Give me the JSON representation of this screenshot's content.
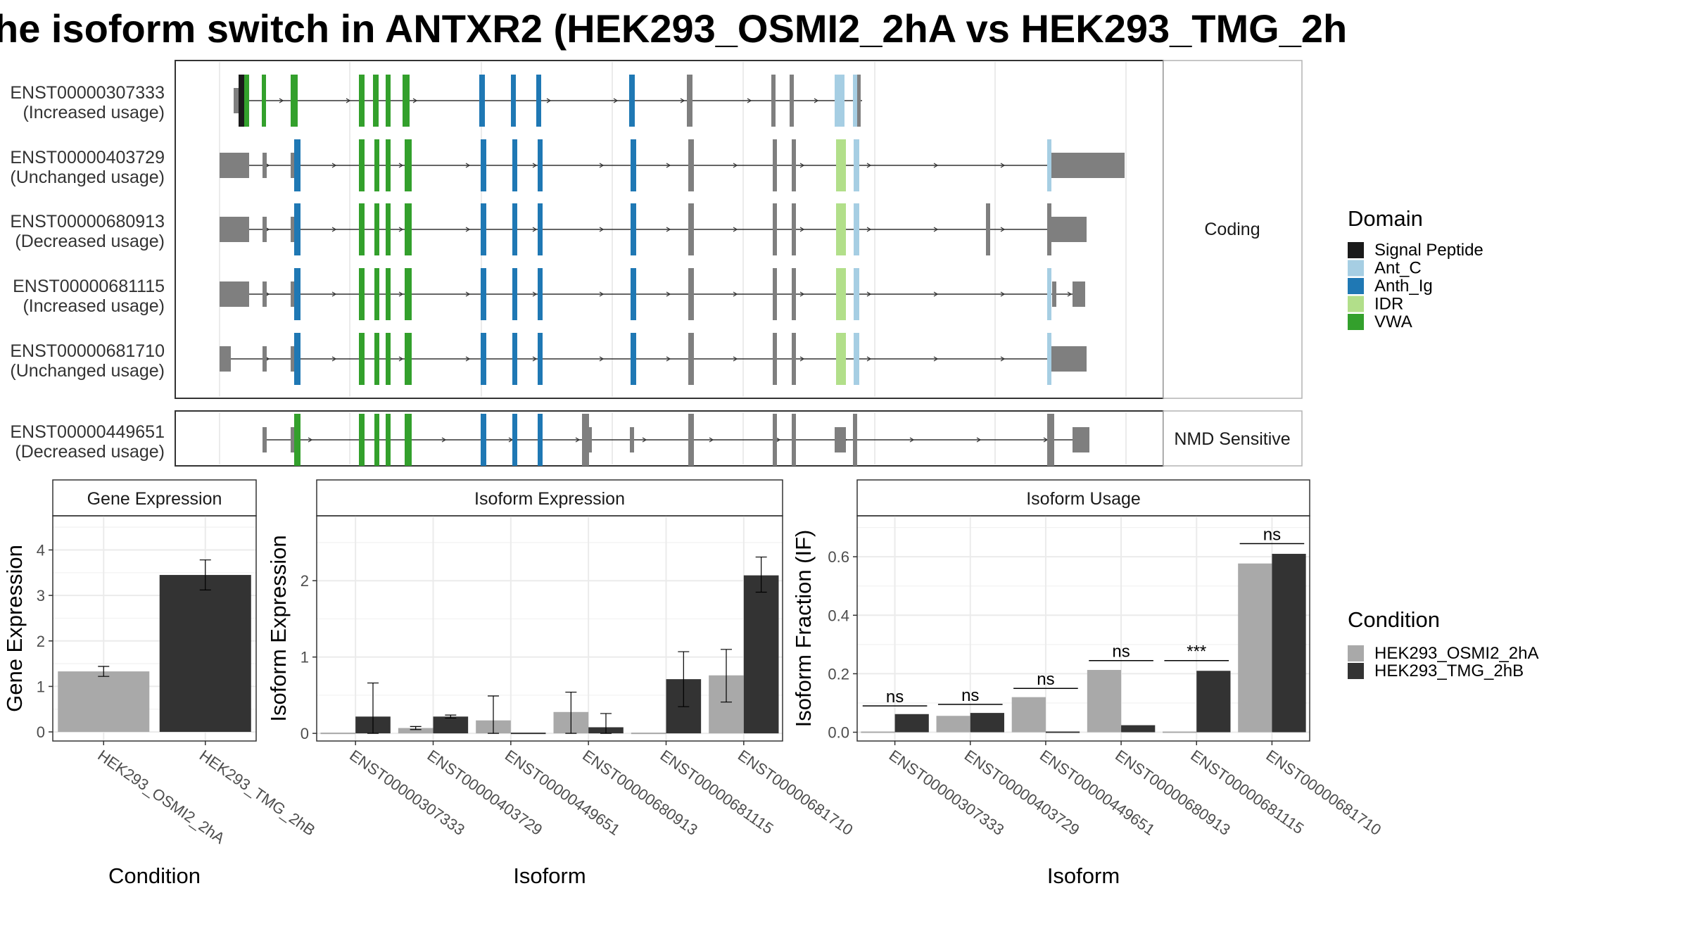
{
  "title": "he isoform switch in ANTXR2 (HEK293_OSMI2_2hA vs HEK293_TMG_2h",
  "chart_data": [
    {
      "type": "gene-structure",
      "facets": [
        "Coding",
        "NMD Sensitive"
      ],
      "transcripts": [
        {
          "id": "ENST00000307333",
          "usage": "(Increased usage)",
          "facet": "Coding"
        },
        {
          "id": "ENST00000403729",
          "usage": "(Unchanged usage)",
          "facet": "Coding"
        },
        {
          "id": "ENST00000680913",
          "usage": "(Decreased usage)",
          "facet": "Coding"
        },
        {
          "id": "ENST00000681115",
          "usage": "(Increased usage)",
          "facet": "Coding"
        },
        {
          "id": "ENST00000681710",
          "usage": "(Unchanged usage)",
          "facet": "Coding"
        },
        {
          "id": "ENST00000449651",
          "usage": "(Decreased usage)",
          "facet": "NMD Sensitive"
        }
      ],
      "legend_title": "Domain",
      "domains": [
        {
          "name": "Signal Peptide",
          "color": "#1a1a1a"
        },
        {
          "name": "Ant_C",
          "color": "#a6cee3"
        },
        {
          "name": "Anth_Ig",
          "color": "#1f78b4"
        },
        {
          "name": "IDR",
          "color": "#b2df8a"
        },
        {
          "name": "VWA",
          "color": "#33a02c"
        }
      ]
    },
    {
      "type": "bar",
      "title": "Gene Expression",
      "xlabel": "Condition",
      "ylabel": "Gene Expression",
      "categories": [
        "HEK293_OSMI2_2hA",
        "HEK293_TMG_2hB"
      ],
      "values": [
        1.33,
        3.45
      ],
      "errors": [
        [
          1.22,
          1.44
        ],
        [
          3.12,
          3.78
        ]
      ],
      "ylim": [
        -0.2,
        4.75
      ],
      "yticks": [
        0,
        1,
        2,
        3,
        4
      ]
    },
    {
      "type": "bar",
      "title": "Isoform Expression",
      "xlabel": "Isoform",
      "ylabel": "Isoform Expression",
      "categories": [
        "ENST00000307333",
        "ENST00000403729",
        "ENST00000449651",
        "ENST00000680913",
        "ENST00000681115",
        "ENST00000681710"
      ],
      "series": [
        {
          "name": "HEK293_OSMI2_2hA",
          "values": [
            0.0,
            0.07,
            0.17,
            0.28,
            0.0,
            0.76
          ],
          "errors": [
            [
              0,
              0
            ],
            [
              0.05,
              0.09
            ],
            [
              0,
              0.49
            ],
            [
              0,
              0.54
            ],
            [
              0,
              0
            ],
            [
              0.41,
              1.1
            ]
          ]
        },
        {
          "name": "HEK293_TMG_2hB",
          "values": [
            0.22,
            0.22,
            0.0,
            0.08,
            0.71,
            2.07
          ],
          "errors": [
            [
              0,
              0.66
            ],
            [
              0.2,
              0.24
            ],
            [
              0,
              0
            ],
            [
              0,
              0.26
            ],
            [
              0.35,
              1.07
            ],
            [
              1.85,
              2.31
            ]
          ]
        }
      ],
      "ylim": [
        -0.1,
        2.85
      ],
      "yticks": [
        0,
        1,
        2
      ]
    },
    {
      "type": "bar",
      "title": "Isoform Usage",
      "xlabel": "Isoform",
      "ylabel": "Isoform Fraction (IF)",
      "categories": [
        "ENST00000307333",
        "ENST00000403729",
        "ENST00000449651",
        "ENST00000680913",
        "ENST00000681115",
        "ENST00000681710"
      ],
      "series": [
        {
          "name": "HEK293_OSMI2_2hA",
          "values": [
            0.0,
            0.056,
            0.12,
            0.213,
            0.0,
            0.577
          ]
        },
        {
          "name": "HEK293_TMG_2hB",
          "values": [
            0.062,
            0.066,
            0.0,
            0.024,
            0.21,
            0.61
          ]
        }
      ],
      "significance": [
        "ns",
        "ns",
        "ns",
        "ns",
        "***",
        "ns"
      ],
      "sig_level": [
        0.09,
        0.095,
        0.15,
        0.245,
        0.245,
        0.645
      ],
      "ylim": [
        -0.03,
        0.74
      ],
      "yticks": [
        "0.0",
        "0.2",
        "0.4",
        "0.6"
      ],
      "legend_title": "Condition",
      "legend": [
        {
          "name": "HEK293_OSMI2_2hA",
          "color": "#a9a9a9"
        },
        {
          "name": "HEK293_TMG_2hB",
          "color": "#333333"
        }
      ]
    }
  ]
}
